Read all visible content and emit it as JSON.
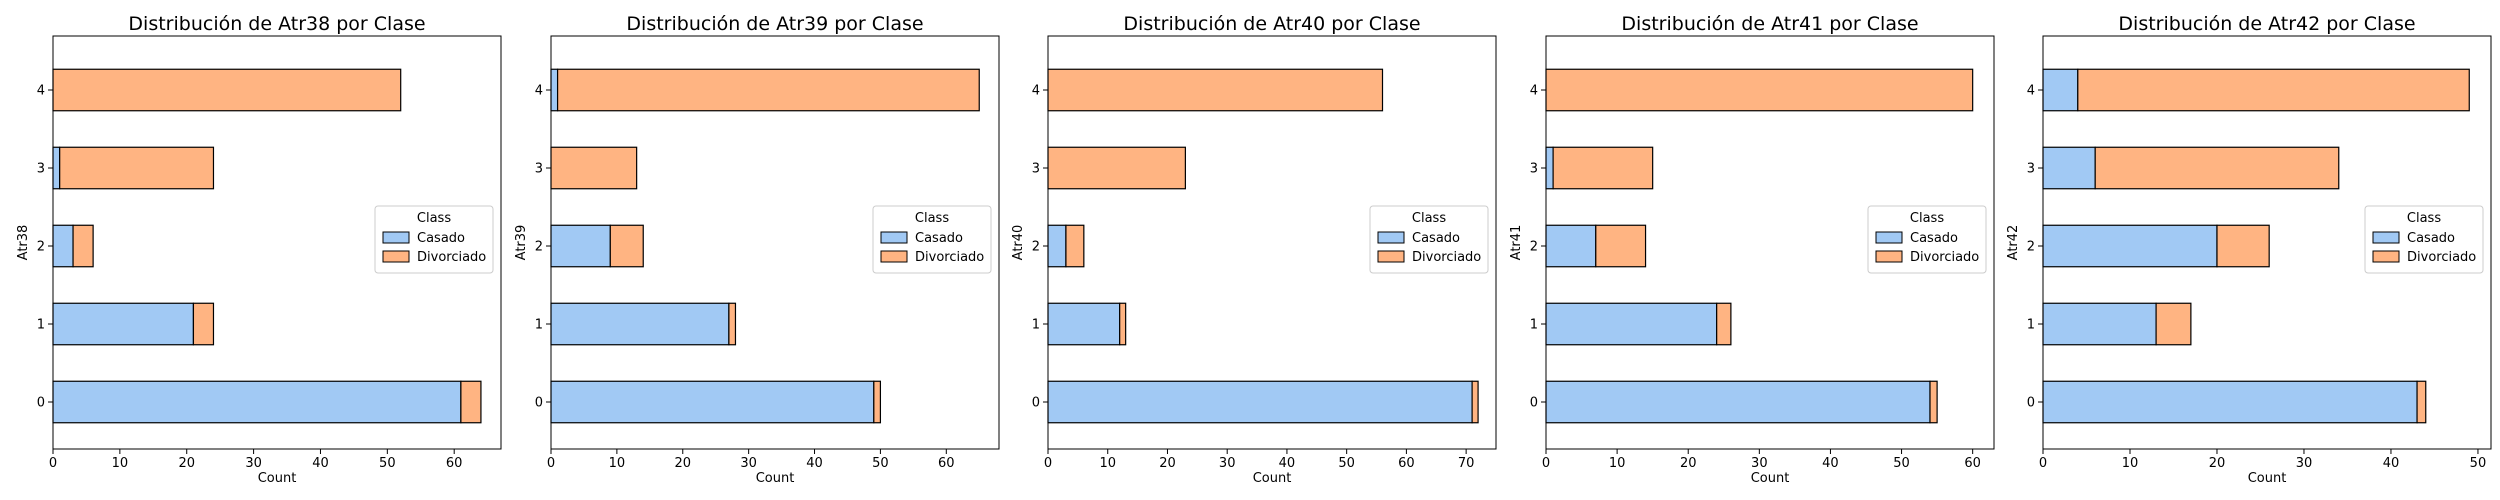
{
  "chart_data": [
    {
      "type": "bar",
      "orientation": "horizontal",
      "stacked": true,
      "title": "Distribución de Atr38 por Clase",
      "xlabel": "Count",
      "ylabel": "Atr38",
      "categories": [
        "0",
        "1",
        "2",
        "3",
        "4"
      ],
      "xlim": [
        0,
        67
      ],
      "xticks": [
        "0",
        "10",
        "20",
        "30",
        "40",
        "50",
        "60"
      ],
      "series": [
        {
          "name": "Casado",
          "values": [
            61,
            21,
            3,
            1,
            0
          ]
        },
        {
          "name": "Divorciado",
          "values": [
            3,
            3,
            3,
            23,
            52
          ]
        }
      ],
      "legend": {
        "title": "Class",
        "position": "center-right"
      },
      "grid": false
    },
    {
      "type": "bar",
      "orientation": "horizontal",
      "stacked": true,
      "title": "Distribución de Atr39 por Clase",
      "xlabel": "Count",
      "ylabel": "Atr39",
      "categories": [
        "0",
        "1",
        "2",
        "3",
        "4"
      ],
      "xlim": [
        0,
        68
      ],
      "xticks": [
        "0",
        "10",
        "20",
        "30",
        "40",
        "50",
        "60"
      ],
      "series": [
        {
          "name": "Casado",
          "values": [
            49,
            27,
            9,
            0,
            1
          ]
        },
        {
          "name": "Divorciado",
          "values": [
            1,
            1,
            5,
            13,
            64
          ]
        }
      ],
      "legend": {
        "title": "Class",
        "position": "center-right"
      },
      "grid": false
    },
    {
      "type": "bar",
      "orientation": "horizontal",
      "stacked": true,
      "title": "Distribución de Atr40 por Clase",
      "xlabel": "Count",
      "ylabel": "Atr40",
      "categories": [
        "0",
        "1",
        "2",
        "3",
        "4"
      ],
      "xlim": [
        0,
        75
      ],
      "xticks": [
        "0",
        "10",
        "20",
        "30",
        "40",
        "50",
        "60",
        "70"
      ],
      "series": [
        {
          "name": "Casado",
          "values": [
            71,
            12,
            3,
            0,
            0
          ]
        },
        {
          "name": "Divorciado",
          "values": [
            1,
            1,
            3,
            23,
            56
          ]
        }
      ],
      "legend": {
        "title": "Class",
        "position": "center-right"
      },
      "grid": false
    },
    {
      "type": "bar",
      "orientation": "horizontal",
      "stacked": true,
      "title": "Distribución de Atr41 por Clase",
      "xlabel": "Count",
      "ylabel": "Atr41",
      "categories": [
        "0",
        "1",
        "2",
        "3",
        "4"
      ],
      "xlim": [
        0,
        63
      ],
      "xticks": [
        "0",
        "10",
        "20",
        "30",
        "40",
        "50",
        "60"
      ],
      "series": [
        {
          "name": "Casado",
          "values": [
            54,
            24,
            7,
            1,
            0
          ]
        },
        {
          "name": "Divorciado",
          "values": [
            1,
            2,
            7,
            14,
            60
          ]
        }
      ],
      "legend": {
        "title": "Class",
        "position": "center-right"
      },
      "grid": false
    },
    {
      "type": "bar",
      "orientation": "horizontal",
      "stacked": true,
      "title": "Distribución de Atr42 por Clase",
      "xlabel": "Count",
      "ylabel": "Atr42",
      "categories": [
        "0",
        "1",
        "2",
        "3",
        "4"
      ],
      "xlim": [
        0,
        51.5
      ],
      "xticks": [
        "0",
        "10",
        "20",
        "30",
        "40",
        "50"
      ],
      "series": [
        {
          "name": "Casado",
          "values": [
            43,
            13,
            20,
            6,
            4
          ]
        },
        {
          "name": "Divorciado",
          "values": [
            1,
            4,
            6,
            28,
            45
          ]
        }
      ],
      "legend": {
        "title": "Class",
        "position": "center-right"
      },
      "grid": false
    }
  ],
  "colors": {
    "Casado": "#a1c9f4",
    "Divorciado": "#ffb482",
    "edge": "#000000"
  }
}
